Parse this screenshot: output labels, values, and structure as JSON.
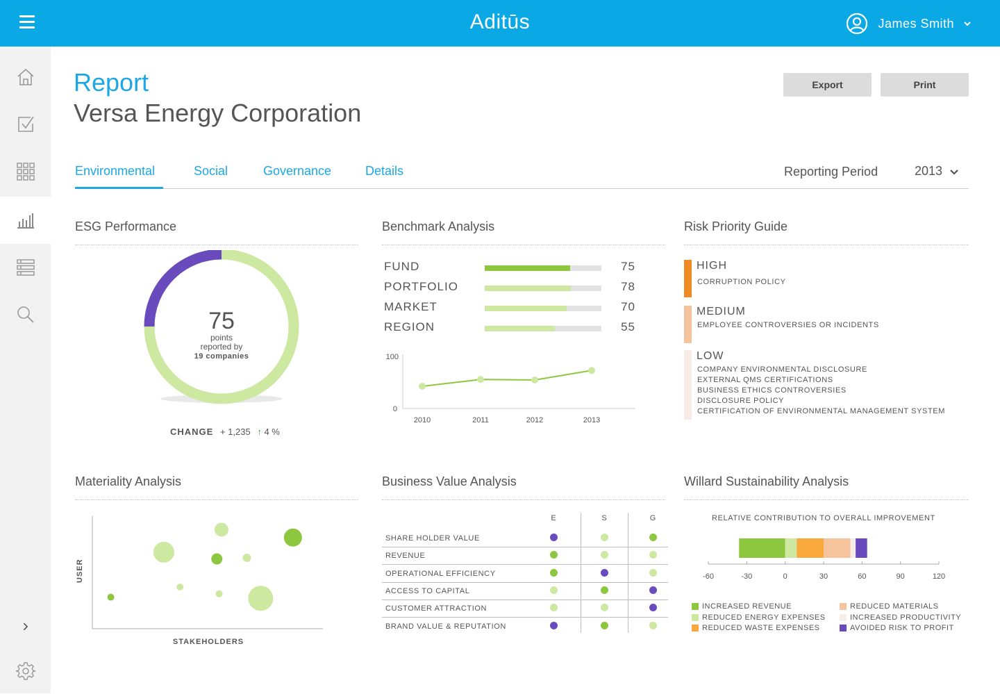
{
  "app": {
    "brand": "Aditūs",
    "user_name": "James Smith"
  },
  "header": {
    "report_label": "Report",
    "company": "Versa Energy Corporation",
    "export_label": "Export",
    "print_label": "Print"
  },
  "sidebar": {
    "items": [
      {
        "icon": "home-icon"
      },
      {
        "icon": "checkbox-icon"
      },
      {
        "icon": "grid-icon"
      },
      {
        "icon": "bar-chart-icon",
        "active": true
      },
      {
        "icon": "list-icon"
      },
      {
        "icon": "search-icon"
      }
    ],
    "bottom": [
      {
        "icon": "chevron-right-icon"
      },
      {
        "icon": "gear-icon"
      }
    ]
  },
  "tabs": [
    {
      "label": "Environmental",
      "active": true
    },
    {
      "label": "Social"
    },
    {
      "label": "Governance"
    },
    {
      "label": "Details"
    }
  ],
  "period": {
    "label": "Reporting Period",
    "value": "2013"
  },
  "colors": {
    "accent": "#1da8e3",
    "green": "#8dc63f",
    "light_green": "#cde8a0",
    "purple": "#6a4bbd",
    "orange": "#f7941e",
    "peach": "#f6c49c",
    "pale": "#f7ebe6"
  },
  "esg": {
    "title": "ESG Performance",
    "value": "75",
    "unit": "points",
    "line2": "reported by",
    "line3": "19 companies",
    "change_label": "CHANGE",
    "change_value": "+ 1,235",
    "change_pct": "4 %",
    "highlight_fraction": 0.25
  },
  "benchmark": {
    "title": "Benchmark Analysis",
    "rows": [
      {
        "label": "FUND",
        "value": "75",
        "fill": 0.73,
        "color": "#8dc63f"
      },
      {
        "label": "PORTFOLIO",
        "value": "78",
        "fill": 0.74,
        "color": "#cde8a0"
      },
      {
        "label": "MARKET",
        "value": "70",
        "fill": 0.7,
        "color": "#cde8a0"
      },
      {
        "label": "REGION",
        "value": "55",
        "fill": 0.6,
        "color": "#cde8a0"
      }
    ]
  },
  "risk": {
    "title": "Risk Priority Guide",
    "levels": [
      {
        "level": "HIGH",
        "color": "#f08a24",
        "items": [
          "CORRUPTION POLICY"
        ]
      },
      {
        "level": "MEDIUM",
        "color": "#f6c49c",
        "items": [
          "EMPLOYEE CONTROVERSIES OR INCIDENTS"
        ]
      },
      {
        "level": "LOW",
        "color": "#f7ebe6",
        "items": [
          "COMPANY ENVIRONMENTAL DISCLOSURE",
          "EXTERNAL QMS CERTIFICATIONS",
          "BUSINESS ETHICS CONTROVERSIES",
          "DISCLOSURE POLICY",
          "CERTIFICATION OF ENVIRONMENTAL MANAGEMENT SYSTEM"
        ]
      }
    ]
  },
  "materiality": {
    "title": "Materiality Analysis",
    "ylabel": "USER",
    "xlabel": "STAKEHOLDERS"
  },
  "business_value": {
    "title": "Business Value Analysis",
    "columns": [
      "E",
      "S",
      "G"
    ],
    "rows": [
      {
        "label": "SHARE HOLDER VALUE",
        "dots": [
          "purple",
          "light",
          "green"
        ]
      },
      {
        "label": "REVENUE",
        "dots": [
          "green",
          "light",
          "light"
        ]
      },
      {
        "label": "OPERATIONAL EFFICIENCY",
        "dots": [
          "green",
          "purple",
          "light"
        ]
      },
      {
        "label": "ACCESS TO CAPITAL",
        "dots": [
          "light",
          "green",
          "purple"
        ]
      },
      {
        "label": "CUSTOMER ATTRACTION",
        "dots": [
          "light",
          "light",
          "purple"
        ]
      },
      {
        "label": "BRAND VALUE & REPUTATION",
        "dots": [
          "purple",
          "green",
          "light"
        ]
      }
    ]
  },
  "willard": {
    "title": "Willard Sustainability Analysis",
    "caption": "RELATIVE CONTRIBUTION TO OVERALL IMPROVEMENT",
    "legend": [
      {
        "label": "INCREASED REVENUE",
        "color": "#8dc63f"
      },
      {
        "label": "REDUCED ENERGY EXPENSES",
        "color": "#cde8a0"
      },
      {
        "label": "REDUCED WASTE EXPENSES",
        "color": "#f9a93b"
      },
      {
        "label": "REDUCED MATERIALS",
        "color": "#f6c49c"
      },
      {
        "label": "INCREASED PRODUCTIVITY",
        "color": "#f5ede8"
      },
      {
        "label": "AVOIDED RISK TO PROFIT",
        "color": "#6a4bbd"
      }
    ]
  },
  "chart_data": [
    {
      "type": "line",
      "x": [
        "2010",
        "2011",
        "2012",
        "2013"
      ],
      "series": [
        {
          "values": [
            42,
            55,
            54,
            72
          ]
        }
      ],
      "ylim": [
        0,
        100
      ],
      "y_ticks": [
        "100",
        "0"
      ]
    },
    {
      "type": "scatter",
      "xlabel": "STAKEHOLDERS",
      "ylabel": "USER",
      "points": [
        {
          "x": 8,
          "y": 28,
          "size": 5,
          "tone": "green"
        },
        {
          "x": 31,
          "y": 68,
          "size": 15,
          "tone": "light"
        },
        {
          "x": 38,
          "y": 37,
          "size": 5,
          "tone": "light"
        },
        {
          "x": 54,
          "y": 62,
          "size": 8,
          "tone": "green"
        },
        {
          "x": 56,
          "y": 88,
          "size": 10,
          "tone": "light"
        },
        {
          "x": 55,
          "y": 31,
          "size": 5,
          "tone": "light"
        },
        {
          "x": 67,
          "y": 63,
          "size": 6,
          "tone": "light"
        },
        {
          "x": 73,
          "y": 27,
          "size": 18,
          "tone": "light"
        },
        {
          "x": 87,
          "y": 81,
          "size": 13,
          "tone": "green"
        }
      ]
    },
    {
      "type": "bar",
      "orientation": "horizontal-stacked",
      "xticks": [
        -60,
        -30,
        0,
        30,
        60,
        90,
        120
      ],
      "xlim": [
        -60,
        120
      ],
      "segments": [
        {
          "name": "INCREASED REVENUE",
          "start": -36,
          "end": 0,
          "color": "#8dc63f"
        },
        {
          "name": "REDUCED ENERGY EXPENSES",
          "start": 0,
          "end": 9,
          "color": "#cde8a0"
        },
        {
          "name": "REDUCED WASTE EXPENSES",
          "start": 9,
          "end": 30,
          "color": "#f9a93b"
        },
        {
          "name": "REDUCED MATERIALS",
          "start": 30,
          "end": 51,
          "color": "#f6c49c"
        },
        {
          "name": "INCREASED PRODUCTIVITY",
          "start": 51,
          "end": 55,
          "color": "#f5ede8"
        },
        {
          "name": "AVOIDED RISK TO PROFIT",
          "start": 55,
          "end": 64,
          "color": "#6a4bbd"
        }
      ]
    }
  ]
}
